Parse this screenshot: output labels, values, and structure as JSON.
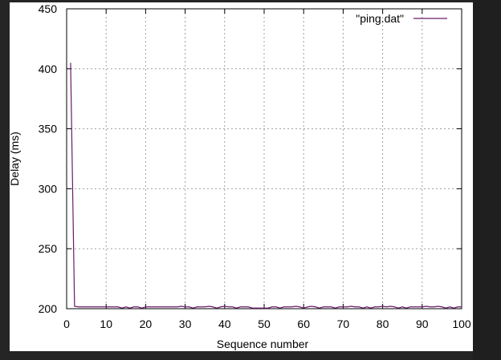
{
  "chart_data": {
    "type": "line",
    "xlabel": "Sequence number",
    "ylabel": "Delay (ms)",
    "xlim": [
      0,
      100
    ],
    "ylim": [
      200,
      450
    ],
    "xticks": [
      "0",
      "10",
      "20",
      "30",
      "40",
      "50",
      "60",
      "70",
      "80",
      "90",
      "100"
    ],
    "yticks": [
      "200",
      "250",
      "300",
      "350",
      "400",
      "450"
    ],
    "grid": true,
    "legend_position": "top-right",
    "series": [
      {
        "name": "\"ping.dat\"",
        "color": "#6a1a6a",
        "x": [
          1,
          2,
          3,
          4,
          5,
          6,
          7,
          8,
          9,
          10,
          11,
          12,
          13,
          14,
          15,
          16,
          17,
          18,
          19,
          20,
          21,
          22,
          23,
          24,
          25,
          26,
          27,
          28,
          29,
          30,
          31,
          32,
          33,
          34,
          35,
          36,
          37,
          38,
          39,
          40,
          41,
          42,
          43,
          44,
          45,
          46,
          47,
          48,
          49,
          50,
          51,
          52,
          53,
          54,
          55,
          56,
          57,
          58,
          59,
          60,
          61,
          62,
          63,
          64,
          65,
          66,
          67,
          68,
          69,
          70,
          71,
          72,
          73,
          74,
          75,
          76,
          77,
          78,
          79,
          80,
          81,
          82,
          83,
          84,
          85,
          86,
          87,
          88,
          89,
          90,
          91,
          92,
          93,
          94,
          95,
          96,
          97,
          98,
          99,
          100
        ],
        "y": [
          405,
          202,
          201.5,
          201.5,
          201.5,
          201.5,
          201.5,
          201.5,
          201.5,
          201.5,
          201.5,
          201.5,
          201.5,
          200.5,
          201.5,
          200.5,
          201.5,
          201.5,
          200.5,
          201.5,
          201.5,
          201.5,
          201.5,
          201.5,
          201.5,
          201.5,
          201.5,
          201.5,
          202,
          201.5,
          201.5,
          200.5,
          201.5,
          201.5,
          201.5,
          202,
          201.5,
          200.5,
          201.5,
          202,
          201.5,
          201.5,
          200.5,
          201.5,
          201.5,
          201.5,
          200.5,
          200.5,
          200.5,
          200.5,
          200.5,
          201.5,
          201.5,
          200.5,
          201.5,
          201.5,
          201.5,
          202,
          201.5,
          200.5,
          201.5,
          202,
          201.5,
          200.5,
          201.5,
          201.5,
          201.5,
          200.5,
          201.5,
          201.5,
          201.5,
          202,
          201.5,
          201.5,
          200.5,
          201.5,
          200.5,
          201.5,
          201.5,
          202,
          201.5,
          202,
          201.5,
          200.5,
          201.5,
          200.5,
          201.5,
          201.5,
          201.5,
          201.5,
          202,
          201.5,
          201.5,
          202,
          201.5,
          200.5,
          201.5,
          200.5,
          201.5,
          201.5
        ]
      }
    ]
  }
}
